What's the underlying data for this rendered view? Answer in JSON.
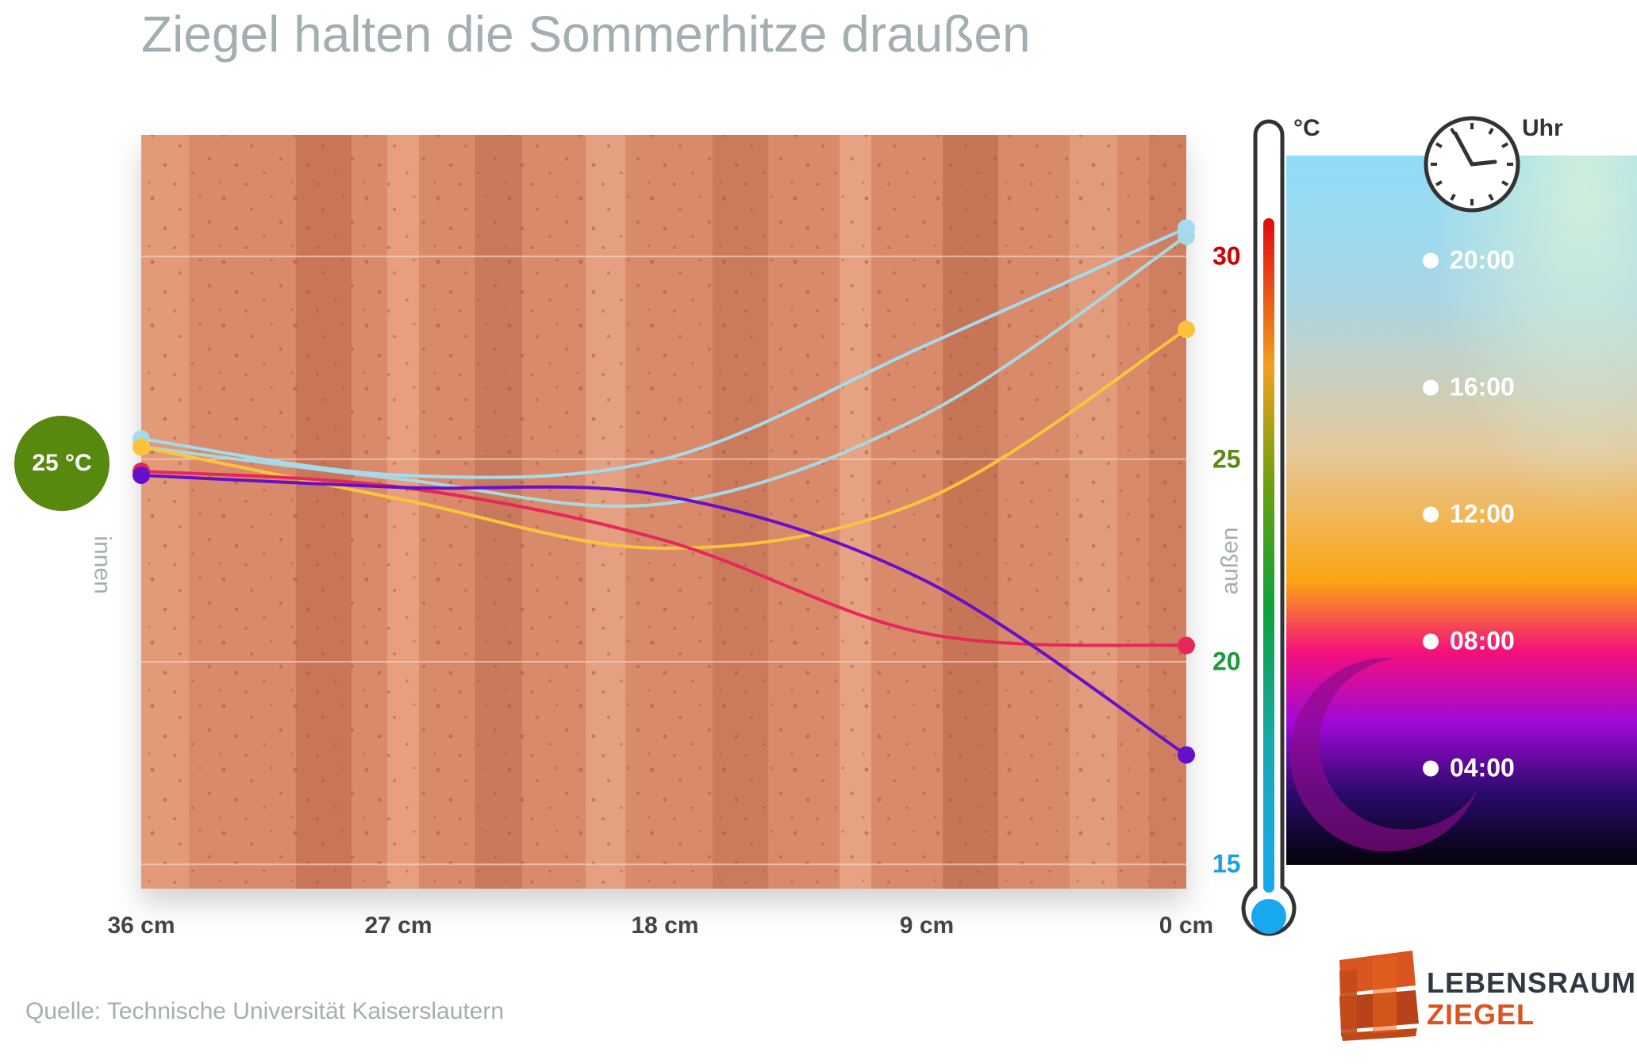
{
  "title": "Ziegel halten die Sommerhitze draußen",
  "source": "Quelle: Technische Universität Kaiserslautern",
  "badge": "25 °C",
  "side_labels": {
    "inner": "innen",
    "outer": "außen"
  },
  "units": {
    "temperature": "°C",
    "time": "Uhr"
  },
  "logo": {
    "line1": "LEBENSRAUM",
    "line2": "ZIEGEL"
  },
  "colors": {
    "t2000": "#aad8e0",
    "t1600": "#a3dcf0",
    "t1200": "#fcc43a",
    "t0800": "#e5275a",
    "t0400": "#6610cc",
    "ytick30": "#cc0000",
    "ytick25": "#5a8a10",
    "ytick20": "#1a9a3c",
    "ytick15": "#1aa0e0",
    "badge": "#58890f"
  },
  "time_legend": [
    {
      "label": "20:00",
      "color_key": "t2000"
    },
    {
      "label": "16:00",
      "color_key": "t1600"
    },
    {
      "label": "12:00",
      "color_key": "t1200"
    },
    {
      "label": "08:00",
      "color_key": "t0800"
    },
    {
      "label": "04:00",
      "color_key": "t0400"
    }
  ],
  "chart_data": {
    "type": "line",
    "title": "Ziegel halten die Sommerhitze draußen",
    "xlabel": "",
    "ylabel": "°C",
    "x_tick_labels": [
      "36 cm",
      "27 cm",
      "18 cm",
      "9 cm",
      "0 cm"
    ],
    "x": [
      36,
      27,
      18,
      9,
      0
    ],
    "xlim": [
      36,
      0
    ],
    "y_ticks": [
      15,
      20,
      25,
      30
    ],
    "ylim": [
      14.4,
      33.0
    ],
    "series": [
      {
        "name": "20:00",
        "color_key": "t2000",
        "x": [
          36,
          27,
          18,
          9,
          0
        ],
        "y": [
          25.3,
          24.5,
          23.9,
          26.1,
          30.5
        ]
      },
      {
        "name": "16:00",
        "color_key": "t1600",
        "x": [
          36,
          27,
          18,
          9,
          0
        ],
        "y": [
          25.5,
          24.6,
          25.0,
          27.8,
          30.7
        ]
      },
      {
        "name": "12:00",
        "color_key": "t1200",
        "x": [
          36,
          27,
          18,
          9,
          0
        ],
        "y": [
          25.3,
          24.0,
          22.8,
          24.0,
          28.2
        ]
      },
      {
        "name": "08:00",
        "color_key": "t0800",
        "x": [
          36,
          27,
          18,
          9,
          0
        ],
        "y": [
          24.7,
          24.3,
          23.0,
          20.7,
          20.4
        ]
      },
      {
        "name": "04:00",
        "color_key": "t0400",
        "x": [
          36,
          27,
          18,
          9,
          0
        ],
        "y": [
          24.6,
          24.3,
          24.1,
          22.0,
          17.7
        ]
      }
    ]
  }
}
